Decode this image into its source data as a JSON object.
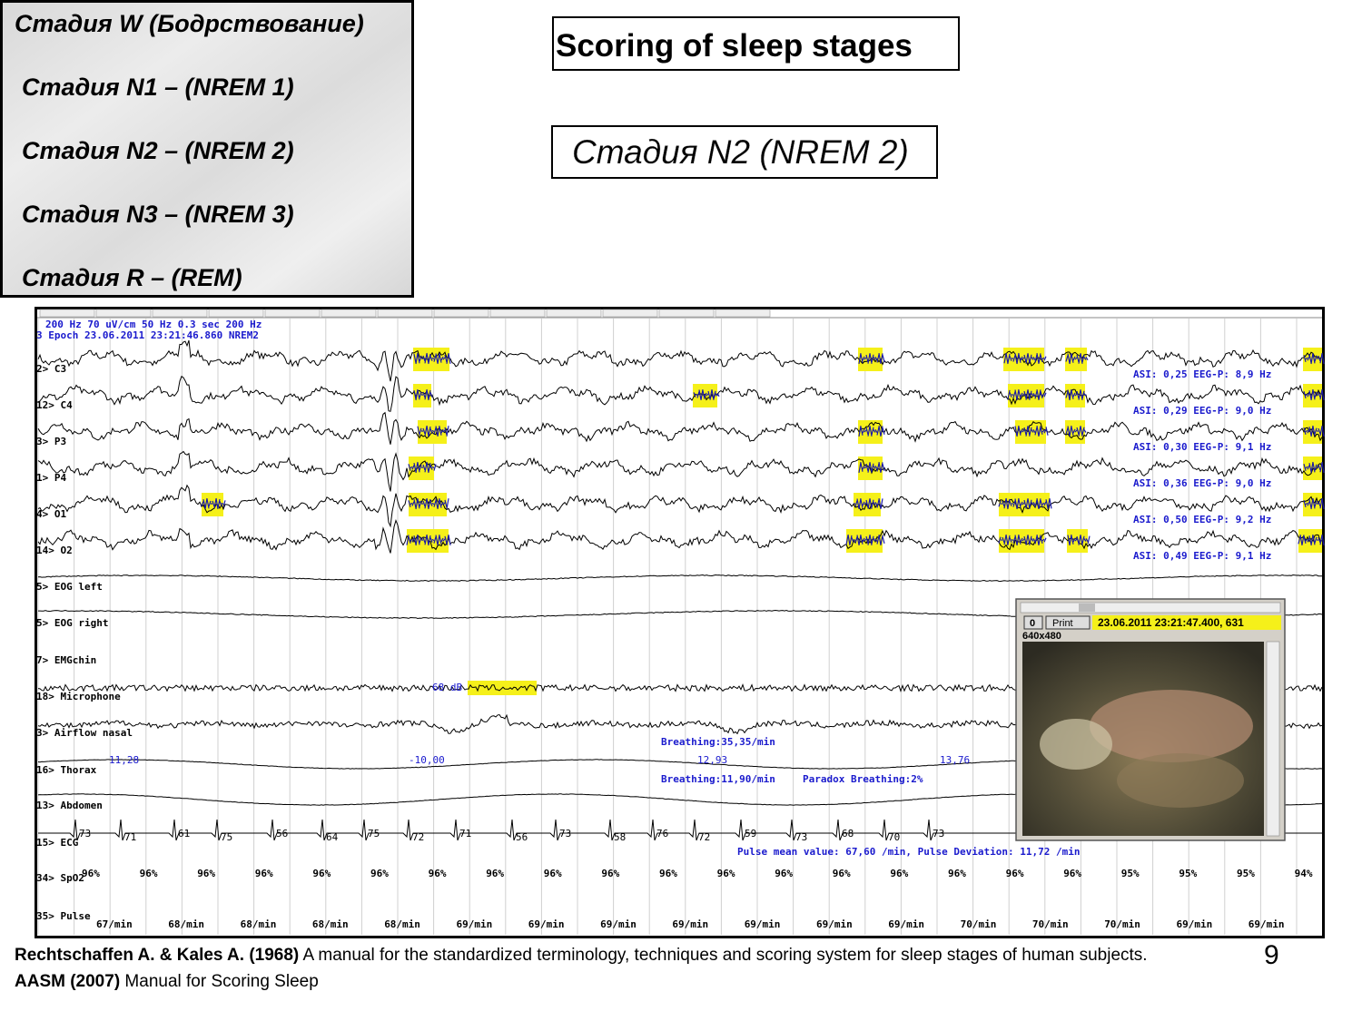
{
  "menu": {
    "items": [
      "Стадия W (Бодрствование)",
      "Стадия N1 – (NREM 1)",
      "Стадия N2 – (NREM 2)",
      "Стадия N3 – (NREM 3)",
      "Стадия R – (REM)"
    ]
  },
  "title": "Scoring of sleep stages",
  "subtitle": "Стадия N2 (NREM 2)",
  "psg": {
    "header": [
      "200 Hz 70 uV/cm  50 Hz 0.3 sec 200 Hz",
      "3 Epoch  23.06.2011 23:21:46.860 NREM2"
    ],
    "channels": [
      "2> C3",
      "12> C4",
      "3> P3",
      "1> P4",
      "4> O1",
      "14> O2",
      "5> EOG left",
      "5> EOG right",
      "7> EMGchin",
      "18> Microphone",
      "3> Airflow nasal",
      "16> Thorax",
      "13> Abdomen",
      "15> ECG",
      "34> SpO2",
      "35> Pulse"
    ],
    "eeg_stats": [
      "ASI: 0,25   EEG-P: 8,9 Hz",
      "ASI: 0,29   EEG-P: 9,0 Hz",
      "ASI: 0,30   EEG-P: 9,1 Hz",
      "ASI: 0,36   EEG-P: 9,0 Hz",
      "ASI: 0,50   EEG-P: 9,2 Hz",
      "ASI: 0,49   EEG-P: 9,1 Hz"
    ],
    "microphone_level": "68 dB",
    "breathing_rate_1": "Breathing:35,35/min",
    "thorax_values": [
      "11,28",
      "-10,00",
      "12,93",
      "13,76"
    ],
    "breathing_rate_2": "Breathing:11,90/min",
    "paradox_breathing": "Paradox Breathing:2%",
    "heart_rates": [
      "73",
      "71",
      "61",
      "75",
      "56",
      "64",
      "75",
      "72",
      "71",
      "56",
      "73",
      "58",
      "76",
      "72",
      "59",
      "73",
      "68",
      "70",
      "73"
    ],
    "pulse_summary": "Pulse mean value: 67,60 /min, Pulse Deviation: 11,72 /min",
    "spo2": [
      "96%",
      "96%",
      "96%",
      "96%",
      "96%",
      "96%",
      "96%",
      "96%",
      "96%",
      "96%",
      "96%",
      "96%",
      "96%",
      "96%",
      "96%",
      "96%",
      "96%",
      "96%",
      "95%",
      "95%",
      "95%",
      "94%"
    ],
    "pulse": [
      "67/min",
      "68/min",
      "68/min",
      "68/min",
      "68/min",
      "69/min",
      "69/min",
      "69/min",
      "69/min",
      "69/min",
      "69/min",
      "69/min",
      "70/min",
      "70/min",
      "70/min",
      "69/min",
      "69/min"
    ],
    "video": {
      "button_zero": "0",
      "print": "Print",
      "timestamp": "23.06.2011 23:21:47.400, 631",
      "resolution": "640x480"
    }
  },
  "references": [
    {
      "authors": "Rechtschaffen A. & Kales A. (1968)",
      "text": " A manual for the standardized terminology, techniques and scoring system for sleep stages of human subjects."
    },
    {
      "authors": "AASM (2007)",
      "text": " Manual for Scoring Sleep"
    }
  ],
  "page_number": "9"
}
